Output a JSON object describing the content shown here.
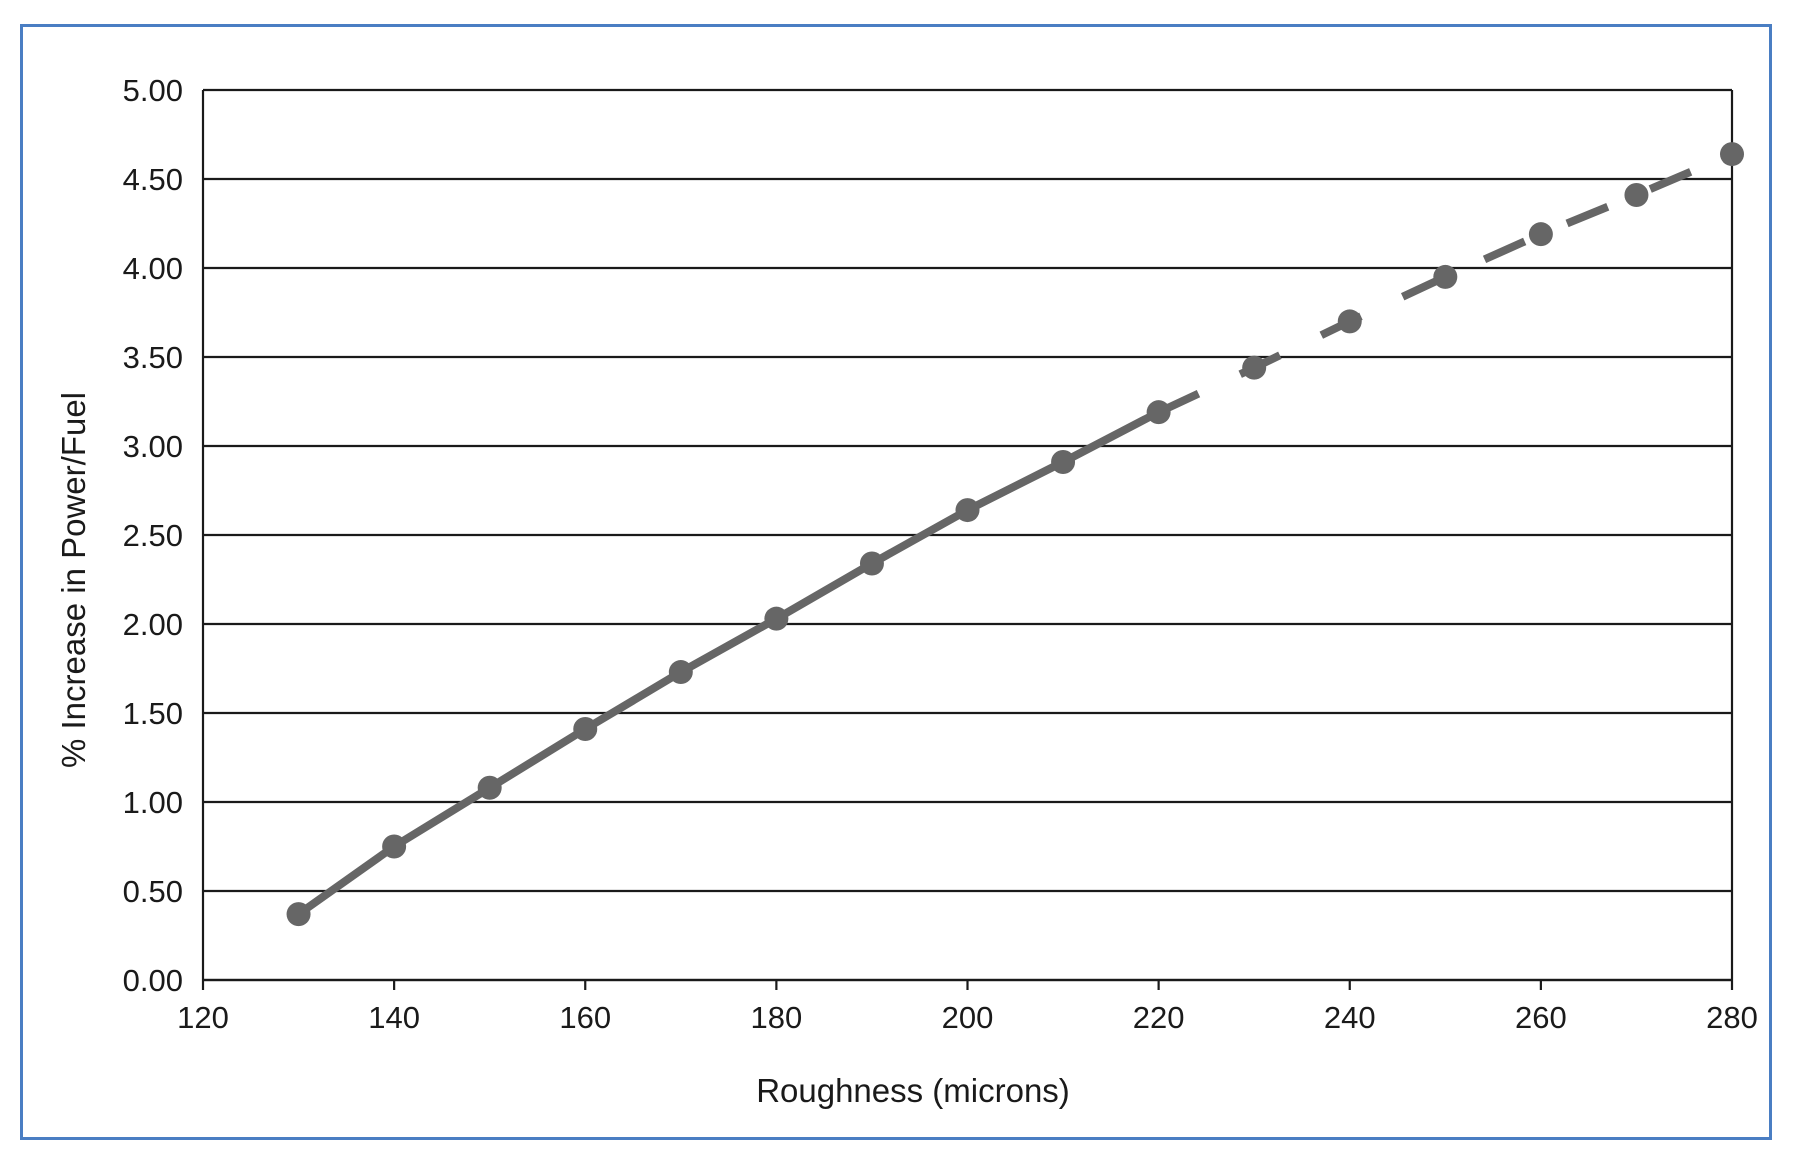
{
  "chart_data": {
    "type": "line",
    "title": "",
    "xlabel": "Roughness (microns)",
    "ylabel": "% Increase in Power/Fuel",
    "xlim": [
      120,
      280
    ],
    "ylim": [
      0,
      5
    ],
    "x_ticks": [
      "120",
      "140",
      "160",
      "180",
      "200",
      "220",
      "240",
      "260",
      "280"
    ],
    "y_ticks": [
      "0.00",
      "0.50",
      "1.00",
      "1.50",
      "2.00",
      "2.50",
      "3.00",
      "3.50",
      "4.00",
      "4.50",
      "5.00"
    ],
    "grid": "horizontal",
    "legend": "none",
    "series": [
      {
        "style": "solid",
        "color": "#666666",
        "x": [
          130,
          140,
          150,
          160,
          170,
          180,
          190,
          200,
          210,
          220
        ],
        "y": [
          0.37,
          0.75,
          1.08,
          1.41,
          1.73,
          2.03,
          2.34,
          2.64,
          2.91,
          3.19
        ]
      },
      {
        "style": "dashed",
        "color": "#666666",
        "x": [
          220,
          230,
          240,
          250,
          260,
          270,
          280
        ],
        "y": [
          3.19,
          3.44,
          3.7,
          3.95,
          4.19,
          4.41,
          4.64
        ]
      }
    ]
  },
  "colors": {
    "frame_border": "#4a7ec3",
    "gridline": "#1a1a1a",
    "series": "#666666"
  }
}
